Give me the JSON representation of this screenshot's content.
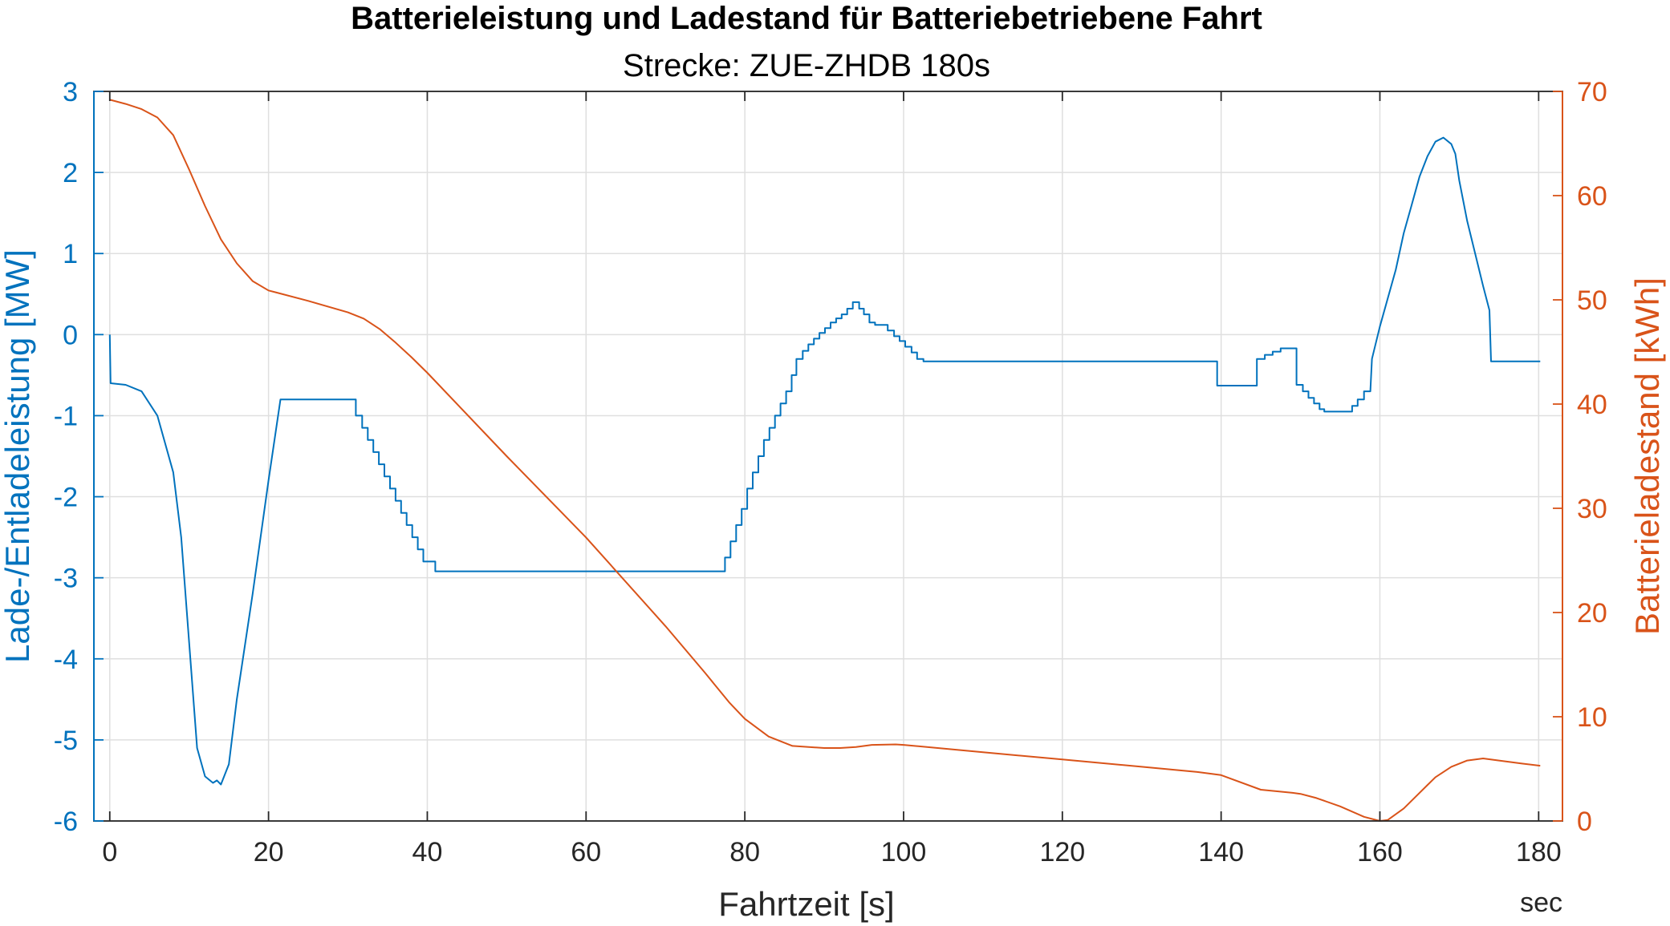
{
  "chart_data": {
    "type": "line",
    "title": "Batterieleistung und Ladestand für Batteriebetriebene Fahrt",
    "subtitle": "Strecke: ZUE-ZHDB 180s",
    "xlabel": "Fahrtzeit [s]",
    "x_unit_label": "sec",
    "ylabel_left": "Lade-/Entladeleistung [MW]",
    "ylabel_right": "Batterieladestand [kWh]",
    "xlim": [
      -2,
      183
    ],
    "ylim_left": [
      -6,
      3
    ],
    "ylim_right": [
      0,
      70
    ],
    "xticks": [
      0,
      20,
      40,
      60,
      80,
      100,
      120,
      140,
      160,
      180
    ],
    "yticks_left": [
      -6,
      -5,
      -4,
      -3,
      -2,
      -1,
      0,
      1,
      2,
      3
    ],
    "yticks_right": [
      0,
      10,
      20,
      30,
      40,
      50,
      60,
      70
    ],
    "grid": true,
    "colors": {
      "left": "#0072BD",
      "right": "#D95319"
    },
    "series": [
      {
        "axis": "left",
        "color": "#0072BD",
        "points": [
          [
            0,
            0
          ],
          [
            0.1,
            -0.6
          ],
          [
            2,
            -0.62
          ],
          [
            4,
            -0.7
          ],
          [
            6,
            -1.0
          ],
          [
            8,
            -1.7
          ],
          [
            9,
            -2.5
          ],
          [
            10,
            -3.8
          ],
          [
            11,
            -5.1
          ],
          [
            12,
            -5.45
          ],
          [
            13,
            -5.53
          ],
          [
            13.5,
            -5.5
          ],
          [
            14,
            -5.55
          ],
          [
            15,
            -5.3
          ],
          [
            16,
            -4.5
          ],
          [
            18,
            -3.2
          ],
          [
            20,
            -1.8
          ],
          [
            21.5,
            -0.8
          ],
          [
            31,
            -0.8
          ],
          [
            31,
            -1.0
          ],
          [
            31.8,
            -1.0
          ],
          [
            31.8,
            -1.15
          ],
          [
            32.5,
            -1.15
          ],
          [
            32.5,
            -1.3
          ],
          [
            33.2,
            -1.3
          ],
          [
            33.2,
            -1.45
          ],
          [
            33.9,
            -1.45
          ],
          [
            33.9,
            -1.6
          ],
          [
            34.6,
            -1.6
          ],
          [
            34.6,
            -1.75
          ],
          [
            35.3,
            -1.75
          ],
          [
            35.3,
            -1.9
          ],
          [
            36,
            -1.9
          ],
          [
            36,
            -2.05
          ],
          [
            36.7,
            -2.05
          ],
          [
            36.7,
            -2.2
          ],
          [
            37.4,
            -2.2
          ],
          [
            37.4,
            -2.35
          ],
          [
            38.1,
            -2.35
          ],
          [
            38.1,
            -2.5
          ],
          [
            38.8,
            -2.5
          ],
          [
            38.8,
            -2.65
          ],
          [
            39.5,
            -2.65
          ],
          [
            39.5,
            -2.8
          ],
          [
            41,
            -2.8
          ],
          [
            41,
            -2.92
          ],
          [
            77.5,
            -2.92
          ],
          [
            77.5,
            -2.75
          ],
          [
            78.2,
            -2.75
          ],
          [
            78.2,
            -2.55
          ],
          [
            78.9,
            -2.55
          ],
          [
            78.9,
            -2.35
          ],
          [
            79.6,
            -2.35
          ],
          [
            79.6,
            -2.15
          ],
          [
            80.3,
            -2.15
          ],
          [
            80.3,
            -1.9
          ],
          [
            81,
            -1.9
          ],
          [
            81,
            -1.7
          ],
          [
            81.7,
            -1.7
          ],
          [
            81.7,
            -1.5
          ],
          [
            82.4,
            -1.5
          ],
          [
            82.4,
            -1.3
          ],
          [
            83.1,
            -1.3
          ],
          [
            83.1,
            -1.15
          ],
          [
            83.8,
            -1.15
          ],
          [
            83.8,
            -1.0
          ],
          [
            84.5,
            -1.0
          ],
          [
            84.5,
            -0.85
          ],
          [
            85.2,
            -0.85
          ],
          [
            85.2,
            -0.7
          ],
          [
            85.9,
            -0.7
          ],
          [
            85.9,
            -0.5
          ],
          [
            86.5,
            -0.5
          ],
          [
            86.5,
            -0.3
          ],
          [
            87.3,
            -0.3
          ],
          [
            87.3,
            -0.2
          ],
          [
            88,
            -0.2
          ],
          [
            88,
            -0.12
          ],
          [
            88.7,
            -0.12
          ],
          [
            88.7,
            -0.05
          ],
          [
            89.4,
            -0.05
          ],
          [
            89.4,
            0.02
          ],
          [
            90.1,
            0.02
          ],
          [
            90.1,
            0.08
          ],
          [
            90.8,
            0.08
          ],
          [
            90.8,
            0.15
          ],
          [
            91.5,
            0.15
          ],
          [
            91.5,
            0.2
          ],
          [
            92.2,
            0.2
          ],
          [
            92.2,
            0.25
          ],
          [
            92.9,
            0.25
          ],
          [
            92.9,
            0.32
          ],
          [
            93.6,
            0.32
          ],
          [
            93.6,
            0.4
          ],
          [
            94.4,
            0.4
          ],
          [
            94.4,
            0.32
          ],
          [
            95,
            0.32
          ],
          [
            95,
            0.25
          ],
          [
            95.7,
            0.25
          ],
          [
            95.7,
            0.15
          ],
          [
            96.4,
            0.15
          ],
          [
            96.4,
            0.12
          ],
          [
            98,
            0.12
          ],
          [
            98,
            0.05
          ],
          [
            98.8,
            0.05
          ],
          [
            98.8,
            -0.02
          ],
          [
            99.5,
            -0.02
          ],
          [
            99.5,
            -0.08
          ],
          [
            100.2,
            -0.08
          ],
          [
            100.2,
            -0.15
          ],
          [
            101,
            -0.15
          ],
          [
            101,
            -0.22
          ],
          [
            101.7,
            -0.22
          ],
          [
            101.7,
            -0.3
          ],
          [
            102.5,
            -0.3
          ],
          [
            102.5,
            -0.33
          ],
          [
            139.5,
            -0.33
          ],
          [
            139.5,
            -0.63
          ],
          [
            144.5,
            -0.63
          ],
          [
            144.5,
            -0.3
          ],
          [
            145.5,
            -0.3
          ],
          [
            145.5,
            -0.25
          ],
          [
            146.5,
            -0.25
          ],
          [
            146.5,
            -0.21
          ],
          [
            147.5,
            -0.21
          ],
          [
            147.5,
            -0.17
          ],
          [
            149.5,
            -0.17
          ],
          [
            149.5,
            -0.62
          ],
          [
            150.3,
            -0.62
          ],
          [
            150.3,
            -0.7
          ],
          [
            151,
            -0.7
          ],
          [
            151,
            -0.78
          ],
          [
            151.7,
            -0.78
          ],
          [
            151.7,
            -0.85
          ],
          [
            152.4,
            -0.85
          ],
          [
            152.4,
            -0.92
          ],
          [
            153,
            -0.92
          ],
          [
            153,
            -0.95
          ],
          [
            156.5,
            -0.95
          ],
          [
            156.5,
            -0.88
          ],
          [
            157.2,
            -0.88
          ],
          [
            157.2,
            -0.8
          ],
          [
            158,
            -0.8
          ],
          [
            158,
            -0.7
          ],
          [
            158.8,
            -0.7
          ],
          [
            159,
            -0.3
          ],
          [
            160,
            0.1
          ],
          [
            162,
            0.8
          ],
          [
            163,
            1.25
          ],
          [
            164,
            1.6
          ],
          [
            165,
            1.95
          ],
          [
            166,
            2.2
          ],
          [
            167,
            2.38
          ],
          [
            168,
            2.43
          ],
          [
            169,
            2.35
          ],
          [
            169.5,
            2.23
          ],
          [
            170,
            1.9
          ],
          [
            171,
            1.4
          ],
          [
            172,
            1.0
          ],
          [
            173,
            0.6
          ],
          [
            173.8,
            0.3
          ],
          [
            174,
            -0.33
          ],
          [
            180.2,
            -0.33
          ]
        ]
      },
      {
        "axis": "right",
        "color": "#D95319",
        "points": [
          [
            0,
            69.2
          ],
          [
            2,
            68.8
          ],
          [
            4,
            68.3
          ],
          [
            6,
            67.5
          ],
          [
            8,
            65.8
          ],
          [
            10,
            62.5
          ],
          [
            12,
            59
          ],
          [
            14,
            55.8
          ],
          [
            16,
            53.5
          ],
          [
            18,
            51.8
          ],
          [
            20,
            50.9
          ],
          [
            21,
            50.7
          ],
          [
            25,
            49.9
          ],
          [
            30,
            48.8
          ],
          [
            32,
            48.2
          ],
          [
            34,
            47.2
          ],
          [
            36,
            45.9
          ],
          [
            38,
            44.5
          ],
          [
            40,
            43
          ],
          [
            50,
            35
          ],
          [
            60,
            27.2
          ],
          [
            70,
            18.7
          ],
          [
            75,
            14.2
          ],
          [
            78,
            11.4
          ],
          [
            80,
            9.8
          ],
          [
            83,
            8.1
          ],
          [
            86,
            7.2
          ],
          [
            90,
            7.0
          ],
          [
            92,
            7.0
          ],
          [
            94,
            7.1
          ],
          [
            96,
            7.3
          ],
          [
            99,
            7.35
          ],
          [
            100,
            7.3
          ],
          [
            110,
            6.6
          ],
          [
            120,
            5.9
          ],
          [
            130,
            5.2
          ],
          [
            137,
            4.7
          ],
          [
            140,
            4.4
          ],
          [
            145,
            3.0
          ],
          [
            149,
            2.7
          ],
          [
            150,
            2.6
          ],
          [
            152,
            2.2
          ],
          [
            155,
            1.4
          ],
          [
            158,
            0.4
          ],
          [
            160,
            0
          ],
          [
            161,
            0.1
          ],
          [
            163,
            1.2
          ],
          [
            165,
            2.7
          ],
          [
            167,
            4.2
          ],
          [
            169,
            5.2
          ],
          [
            171,
            5.8
          ],
          [
            173,
            6.0
          ],
          [
            175,
            5.8
          ],
          [
            178,
            5.5
          ],
          [
            180.2,
            5.3
          ]
        ]
      }
    ]
  }
}
